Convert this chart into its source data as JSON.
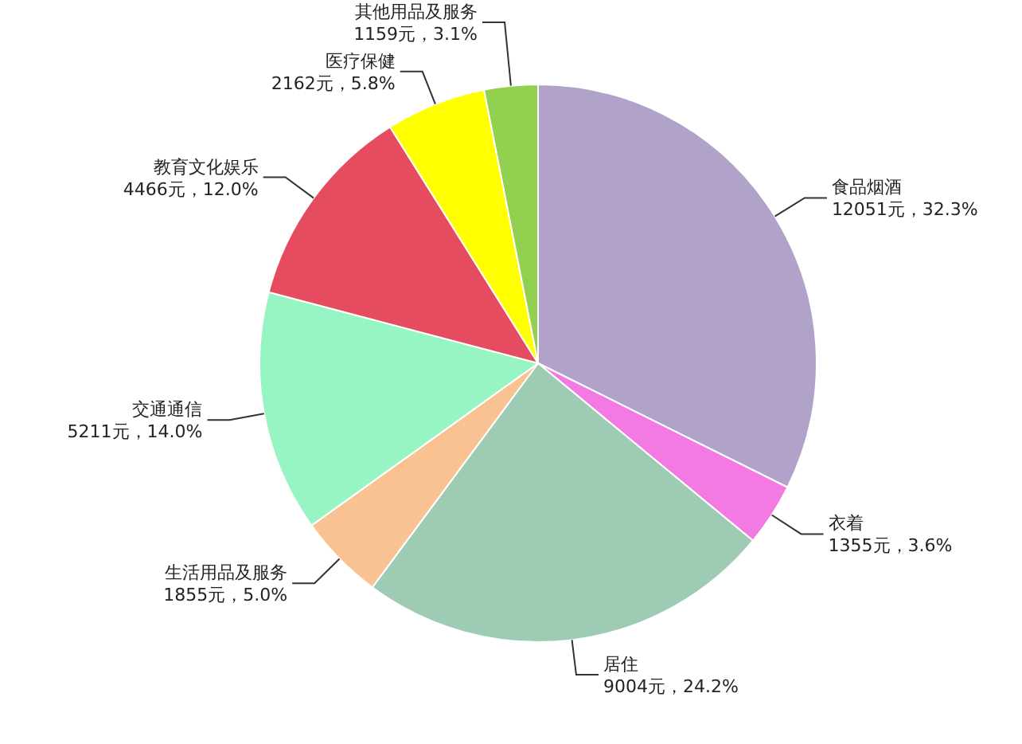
{
  "chart_data": {
    "type": "pie",
    "categories": [
      "食品烟酒",
      "衣着",
      "居住",
      "生活用品及服务",
      "交通通信",
      "教育文化娱乐",
      "医疗保健",
      "其他用品及服务"
    ],
    "values": [
      12051,
      1355,
      9004,
      1855,
      5211,
      4466,
      2162,
      1159
    ],
    "value_labels": [
      "12051元，32.3%",
      "1355元，3.6%",
      "9004元，24.2%",
      "1855元，5.0%",
      "5211元，14.0%",
      "4466元，12.0%",
      "2162元，5.8%",
      "1159元，3.1%"
    ],
    "colors": [
      "#b0a2c8",
      "#f27ae2",
      "#9ecbb4",
      "#f9c293",
      "#96f5c2",
      "#e54c60",
      "#ffff00",
      "#92d150"
    ]
  }
}
